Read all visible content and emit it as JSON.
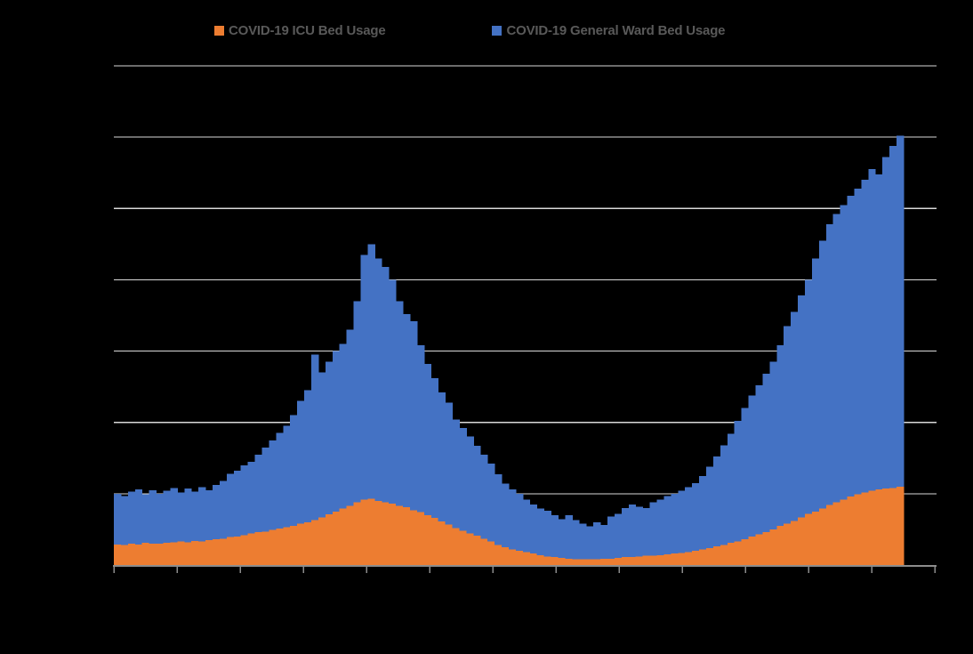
{
  "window": {
    "background": "#000000"
  },
  "chart_data": {
    "type": "bar",
    "stacked": true,
    "title": "",
    "xlabel": "",
    "ylabel": "",
    "grid": true,
    "legend_position": "top-center",
    "x_axis": {
      "tick_marks": 14,
      "tick_labels_visible": false
    },
    "y_axis": {
      "min": 0,
      "max": 7,
      "gridline_interval": 1,
      "labels_visible": false,
      "unit_note": "Axis tick labels are not visible in the image (black text on black background). Values are expressed in y-gridline intervals: 1.0 = one gridline spacing; 7 intervals span baseline to top gridline."
    },
    "n_points": 112,
    "x_description": "time series, uniformly spaced left to right; data ends before the right edge of the plot area",
    "stack_order_note": "ICU (orange) stacked at bottom, General Ward (blue) stacked on top",
    "series": [
      {
        "name": "COVID-19 ICU Bed Usage",
        "color": "#ED7D31",
        "values": [
          0.29,
          0.28,
          0.3,
          0.29,
          0.31,
          0.3,
          0.3,
          0.31,
          0.32,
          0.33,
          0.32,
          0.34,
          0.33,
          0.35,
          0.36,
          0.37,
          0.39,
          0.4,
          0.42,
          0.44,
          0.46,
          0.47,
          0.49,
          0.51,
          0.53,
          0.55,
          0.58,
          0.6,
          0.63,
          0.67,
          0.71,
          0.75,
          0.79,
          0.83,
          0.88,
          0.92,
          0.93,
          0.9,
          0.88,
          0.86,
          0.83,
          0.81,
          0.77,
          0.74,
          0.7,
          0.66,
          0.61,
          0.57,
          0.52,
          0.48,
          0.44,
          0.41,
          0.37,
          0.33,
          0.28,
          0.25,
          0.22,
          0.2,
          0.18,
          0.16,
          0.14,
          0.12,
          0.11,
          0.1,
          0.09,
          0.08,
          0.08,
          0.08,
          0.08,
          0.09,
          0.09,
          0.1,
          0.11,
          0.11,
          0.12,
          0.13,
          0.13,
          0.14,
          0.15,
          0.16,
          0.17,
          0.18,
          0.2,
          0.22,
          0.24,
          0.26,
          0.28,
          0.31,
          0.33,
          0.36,
          0.4,
          0.43,
          0.46,
          0.5,
          0.55,
          0.58,
          0.62,
          0.67,
          0.72,
          0.75,
          0.79,
          0.84,
          0.88,
          0.92,
          0.96,
          0.99,
          1.02,
          1.04,
          1.06,
          1.07,
          1.08,
          1.1
        ]
      },
      {
        "name": "COVID-19 General Ward Bed Usage",
        "color": "#4472C4",
        "values": [
          0.71,
          0.69,
          0.73,
          0.77,
          0.68,
          0.75,
          0.7,
          0.73,
          0.76,
          0.69,
          0.75,
          0.69,
          0.76,
          0.7,
          0.76,
          0.81,
          0.89,
          0.92,
          0.98,
          1.01,
          1.09,
          1.18,
          1.26,
          1.34,
          1.42,
          1.55,
          1.72,
          1.85,
          2.32,
          2.03,
          2.14,
          2.25,
          2.31,
          2.47,
          2.82,
          3.43,
          3.57,
          3.4,
          3.3,
          3.14,
          2.87,
          2.71,
          2.65,
          2.34,
          2.12,
          1.96,
          1.81,
          1.71,
          1.52,
          1.44,
          1.36,
          1.26,
          1.18,
          1.09,
          0.99,
          0.89,
          0.84,
          0.8,
          0.74,
          0.69,
          0.65,
          0.64,
          0.59,
          0.54,
          0.61,
          0.55,
          0.5,
          0.46,
          0.52,
          0.47,
          0.59,
          0.62,
          0.69,
          0.74,
          0.7,
          0.67,
          0.75,
          0.78,
          0.82,
          0.84,
          0.87,
          0.91,
          0.95,
          1.03,
          1.14,
          1.26,
          1.4,
          1.53,
          1.69,
          1.84,
          1.98,
          2.09,
          2.22,
          2.35,
          2.53,
          2.77,
          2.93,
          3.11,
          3.28,
          3.55,
          3.76,
          3.94,
          4.04,
          4.13,
          4.22,
          4.29,
          4.38,
          4.51,
          4.42,
          4.65,
          4.8,
          4.92
        ]
      }
    ],
    "colors": {
      "gridline": "#D9D9D9",
      "axis": "#8C8C8C",
      "background": "#000000",
      "legend_text": "#595959"
    }
  }
}
